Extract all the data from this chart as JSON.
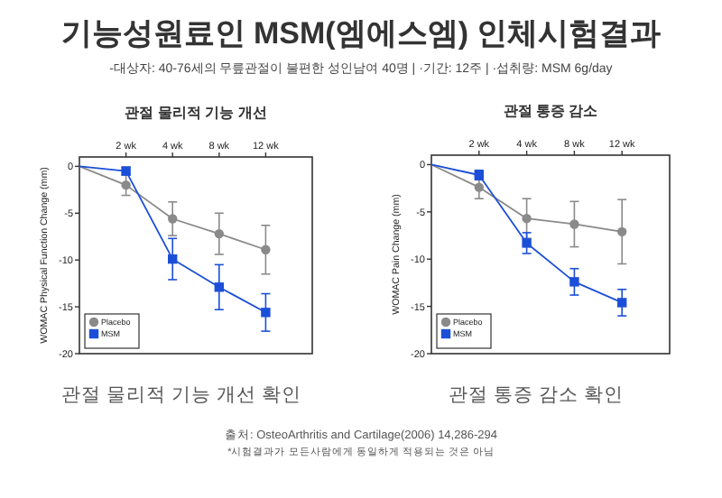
{
  "chart_data": [
    {
      "type": "other",
      "title": "기능성원료인 MSM(엠에스엠) 인체시험결과",
      "subtitle": "-대상자: 40-76세의 무릎관절이 불편한 성인남여 40명    |    ·기간: 12주    |    ·섭취량: MSM 6g/day",
      "annotations": [
        "출처: OsteoArthritis and Cartilage(2006) 14,286-294",
        "*시험결과가 모든사람에게 동일하게 적용되는 것은 아님"
      ]
    },
    {
      "type": "line",
      "title": "관절 물리적 기능 개선",
      "ylabel": "WOMAC Physical Function Change (mm)",
      "categories": [
        null,
        "2 wk",
        "4 wk",
        "8 wk",
        "12 wk"
      ],
      "ylim": [
        -20,
        1
      ],
      "yticks": [
        0,
        -5,
        -10,
        -15,
        -20
      ],
      "grid": false,
      "legend": "bottom left",
      "line_style": "solid",
      "series": [
        {
          "name": "Placebo",
          "color": "#8a8a8a",
          "marker": "circle",
          "values": [
            0,
            -2.0,
            -5.6,
            -7.2,
            -8.9
          ],
          "errors": [
            null,
            1.1,
            1.8,
            2.2,
            2.6
          ]
        },
        {
          "name": "MSM",
          "color": "#1c4fd8",
          "marker": "square",
          "values": [
            0,
            -0.5,
            -9.9,
            -12.9,
            -15.6
          ],
          "errors": [
            null,
            0.4,
            2.2,
            2.4,
            2.0
          ]
        }
      ],
      "annotations": [
        "관절 물리적 기능 개선 확인"
      ]
    },
    {
      "type": "line",
      "title": "관절 통증 감소",
      "ylabel": "WOMAC Pain Change (mm)",
      "categories": [
        null,
        "2 wk",
        "4 wk",
        "8 wk",
        "12 wk"
      ],
      "ylim": [
        -20,
        1
      ],
      "yticks": [
        0,
        -5,
        -10,
        -15,
        -20
      ],
      "grid": false,
      "legend": "bottom left",
      "line_style": "solid",
      "series": [
        {
          "name": "Placebo",
          "color": "#8a8a8a",
          "marker": "circle",
          "values": [
            0,
            -2.4,
            -5.7,
            -6.3,
            -7.1
          ],
          "errors": [
            null,
            1.2,
            2.1,
            2.4,
            3.4
          ]
        },
        {
          "name": "MSM",
          "color": "#1c4fd8",
          "marker": "square",
          "values": [
            0,
            -1.1,
            -8.3,
            -12.4,
            -14.6
          ],
          "errors": [
            null,
            0.5,
            1.1,
            1.4,
            1.4
          ]
        }
      ],
      "annotations": [
        "관절 통증 감소 확인"
      ]
    }
  ]
}
